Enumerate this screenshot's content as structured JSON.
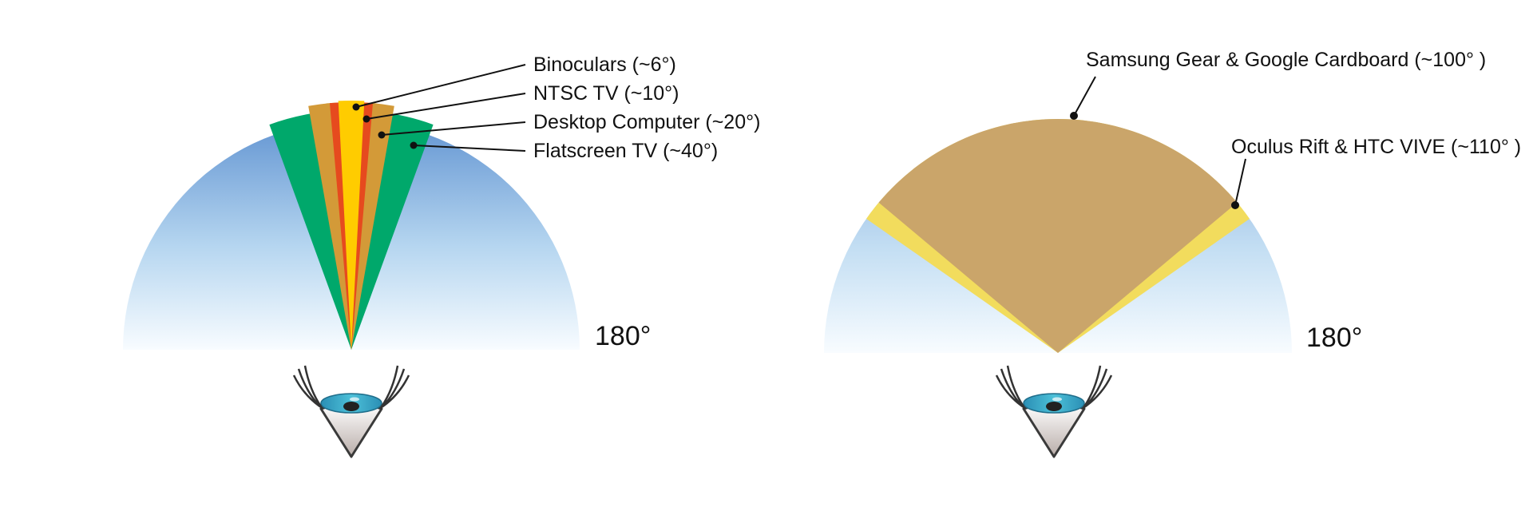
{
  "diagrams": [
    {
      "id": "left",
      "degree_label": "180°",
      "wedges": [
        {
          "name": "Flatscreen TV",
          "label": "Flatscreen TV (~40°)",
          "angle_deg": 40,
          "color": "#00a86b"
        },
        {
          "name": "Desktop Computer",
          "label": "Desktop Computer (~20°)",
          "angle_deg": 20,
          "color": "#d39a38"
        },
        {
          "name": "NTSC TV",
          "label": "NTSC TV (~10°)",
          "angle_deg": 10,
          "color": "#e64a1e"
        },
        {
          "name": "Binoculars",
          "label": "Binoculars (~6°)",
          "angle_deg": 6,
          "color": "#ffcc00"
        }
      ]
    },
    {
      "id": "right",
      "degree_label": "180°",
      "wedges": [
        {
          "name": "Oculus Rift & HTC VIVE",
          "label": "Oculus Rift & HTC VIVE (~110° )",
          "angle_deg": 110,
          "color": "#f2dc5d"
        },
        {
          "name": "Samsung Gear & Google Cardboard",
          "label": "Samsung Gear & Google Cardboard (~100° )",
          "angle_deg": 100,
          "color": "#caa56a"
        }
      ]
    }
  ],
  "colors": {
    "sky_top": "#6a9bd5",
    "sky_bottom": "#f5fbfe",
    "iris": "#3aa8c8",
    "eyelash": "#333333"
  }
}
